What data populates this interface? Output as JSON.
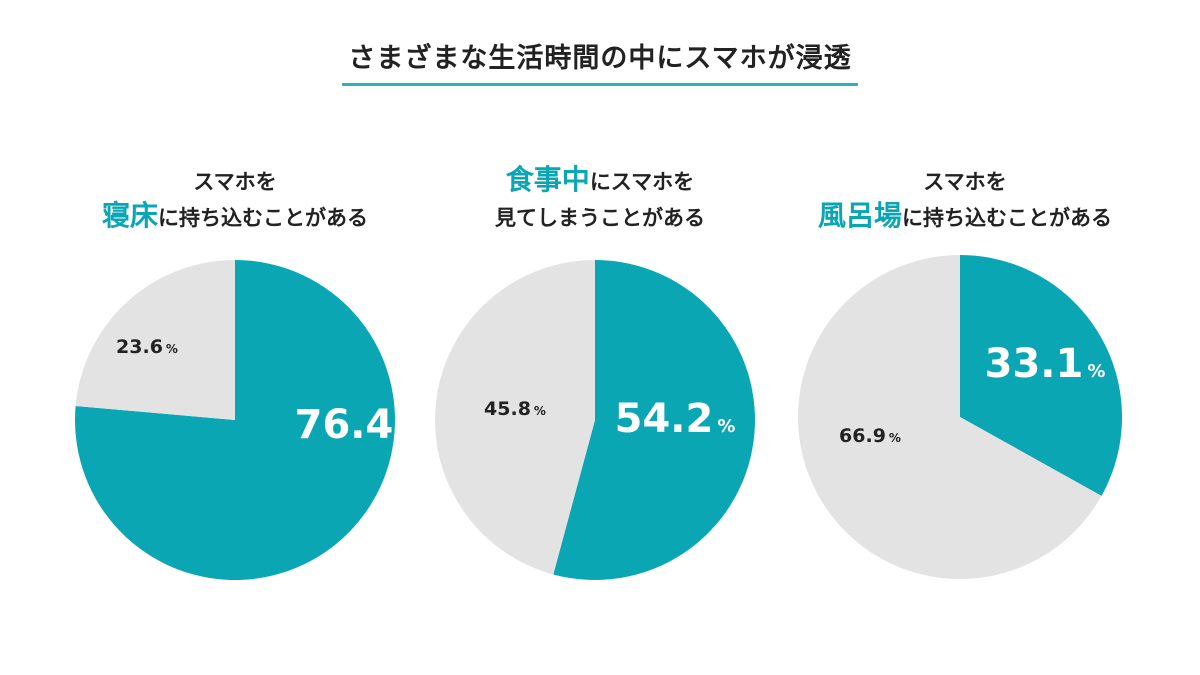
{
  "title": "さまざまな生活時間の中にスマホが浸透",
  "colors": {
    "accent": "#0aa6b4",
    "rest": "#e3e3e3",
    "underline": "#2ab3bf"
  },
  "panels": [
    {
      "caption": {
        "line1_pre": "スマホを",
        "line1_accent": "",
        "line1_post": "",
        "line2_pre": "",
        "line2_accent": "寝床",
        "line2_post": "に持ち込むことがある"
      },
      "accent_label": "76.4",
      "rest_label": "23.6",
      "unit": "%"
    },
    {
      "caption": {
        "line1_pre": "",
        "line1_accent": "食事中",
        "line1_post": "にスマホを",
        "line2_pre": "見てしまうことがある",
        "line2_accent": "",
        "line2_post": ""
      },
      "accent_label": "54.2",
      "rest_label": "45.8",
      "unit": "%"
    },
    {
      "caption": {
        "line1_pre": "スマホを",
        "line1_accent": "",
        "line1_post": "",
        "line2_pre": "",
        "line2_accent": "風呂場",
        "line2_post": "に持ち込むことがある"
      },
      "accent_label": "33.1",
      "rest_label": "66.9",
      "unit": "%"
    }
  ],
  "chart_data": [
    {
      "type": "pie",
      "title": "スマホを寝床に持ち込むことがある",
      "values": [
        76.4,
        23.6
      ],
      "unit": "%"
    },
    {
      "type": "pie",
      "title": "食事中にスマホを見てしまうことがある",
      "values": [
        54.2,
        45.8
      ],
      "unit": "%"
    },
    {
      "type": "pie",
      "title": "スマホを風呂場に持ち込むことがある",
      "values": [
        33.1,
        66.9
      ],
      "unit": "%"
    }
  ]
}
